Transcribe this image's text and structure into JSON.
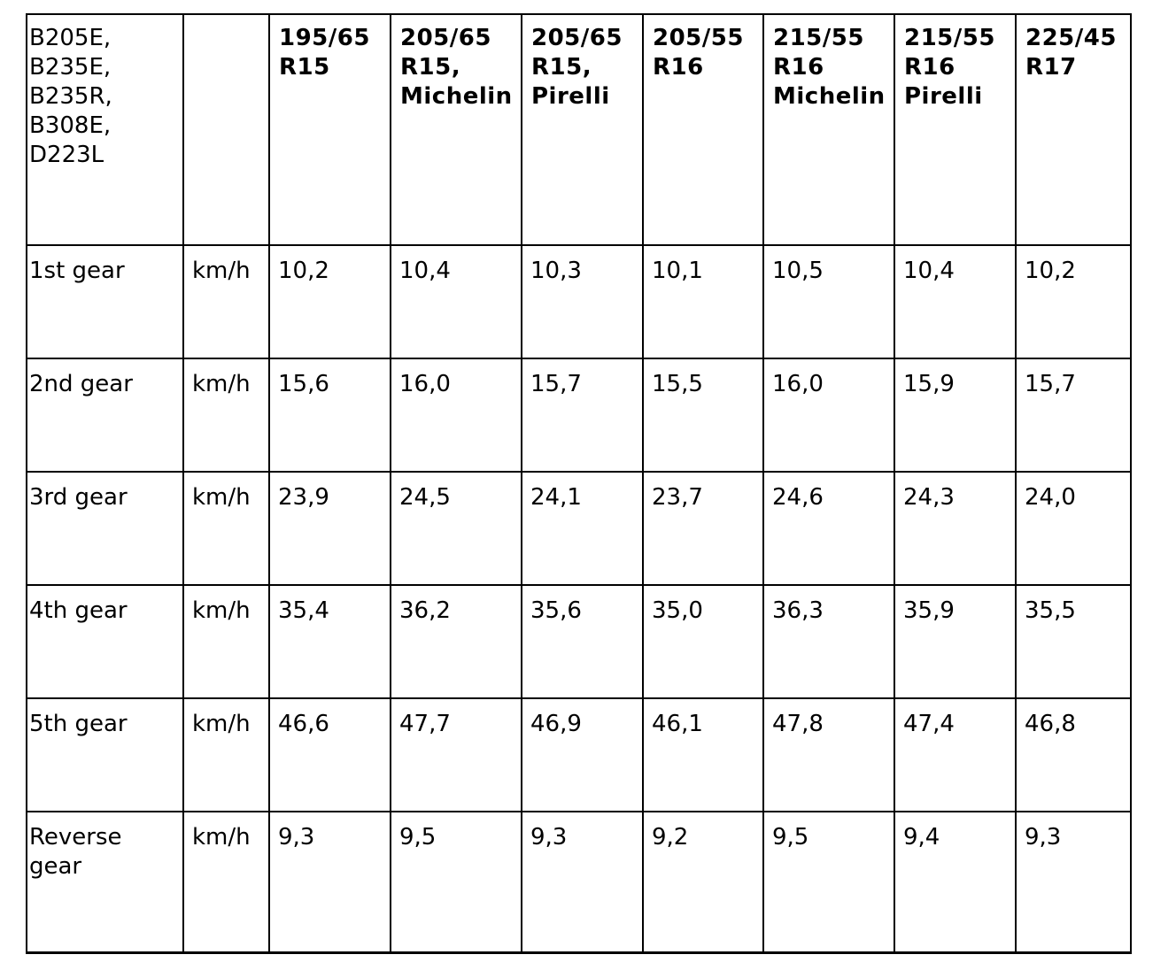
{
  "table": {
    "header": [
      "B205E, B235E, B235R, B308E, D223L",
      "",
      "195/65 R15",
      "205/65 R15, Michelin",
      "205/65 R15, Pirelli",
      "205/55 R16",
      "215/55 R16 Michelin",
      "215/55 R16 Pirelli",
      "225/45 R17"
    ],
    "rows": [
      [
        "1st gear",
        "km/h",
        "10,2",
        "10,4",
        "10,3",
        "10,1",
        "10,5",
        "10,4",
        "10,2"
      ],
      [
        "2nd gear",
        "km/h",
        "15,6",
        "16,0",
        "15,7",
        "15,5",
        "16,0",
        "15,9",
        "15,7"
      ],
      [
        "3rd gear",
        "km/h",
        "23,9",
        "24,5",
        "24,1",
        "23,7",
        "24,6",
        "24,3",
        "24,0"
      ],
      [
        "4th gear",
        "km/h",
        "35,4",
        "36,2",
        "35,6",
        "35,0",
        "36,3",
        "35,9",
        "35,5"
      ],
      [
        "5th gear",
        "km/h",
        "46,6",
        "47,7",
        "46,9",
        "46,1",
        "47,8",
        "47,4",
        "46,8"
      ],
      [
        "Reverse gear",
        "km/h",
        "9,3",
        "9,5",
        "9,3",
        "9,2",
        "9,5",
        "9,4",
        "9,3"
      ]
    ]
  }
}
